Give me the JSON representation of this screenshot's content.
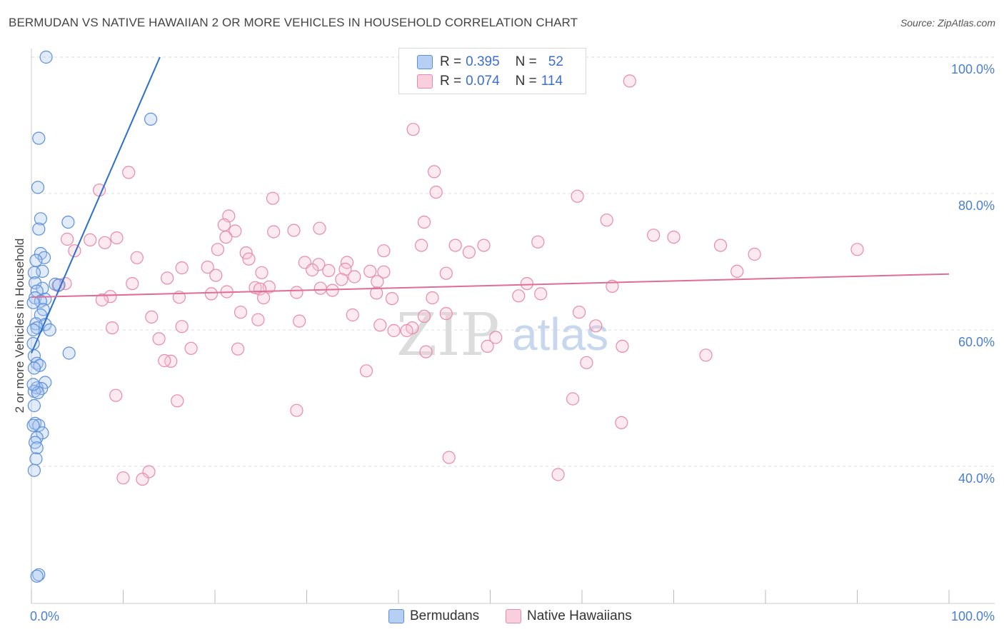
{
  "title": "BERMUDAN VS NATIVE HAWAIIAN 2 OR MORE VEHICLES IN HOUSEHOLD CORRELATION CHART",
  "source": "Source: ZipAtlas.com",
  "colors": {
    "blue": "#5b8fdc",
    "blue_fill": "#a8c7f0",
    "blue_line": "#2a6fd0",
    "pink": "#e88aa8",
    "pink_fill": "#f6c3d3",
    "pink_line": "#e06c98",
    "tick": "#4a7fd0"
  },
  "legend": {
    "rows": [
      {
        "r_label": "R =",
        "r_value": "0.395",
        "n_label": "N =",
        "n_value": "52"
      },
      {
        "r_label": "R =",
        "r_value": "0.074",
        "n_label": "N =",
        "n_value": "114"
      }
    ]
  },
  "bottom_legend": {
    "series1": "Bermudans",
    "series2": "Native Hawaiians"
  },
  "watermark": {
    "zip": "ZIP",
    "atlas": "atlas"
  },
  "chart_data": {
    "type": "scatter",
    "title": "BERMUDAN VS NATIVE HAWAIIAN 2 OR MORE VEHICLES IN HOUSEHOLD CORRELATION CHART",
    "xlabel": "",
    "ylabel": "2 or more Vehicles in Household",
    "xlim": [
      0,
      100
    ],
    "ylim": [
      20,
      102
    ],
    "x_tick_labels": [
      "0.0%",
      "100.0%"
    ],
    "y_ticks": [
      40,
      60,
      80,
      100
    ],
    "y_tick_labels": [
      "40.0%",
      "60.0%",
      "80.0%",
      "100.0%"
    ],
    "grid": true,
    "legend_position": "top-center",
    "series": [
      {
        "name": "Bermudans",
        "R": 0.395,
        "N": 52,
        "trend": {
          "x": [
            0.0,
            14.0
          ],
          "y": [
            56.6,
            100.0
          ]
        },
        "points": [
          [
            1.6,
            100.0
          ],
          [
            13.0,
            90.9
          ],
          [
            0.8,
            88.1
          ],
          [
            0.7,
            80.9
          ],
          [
            1.0,
            76.3
          ],
          [
            4.0,
            75.8
          ],
          [
            0.8,
            74.8
          ],
          [
            1.0,
            71.2
          ],
          [
            1.4,
            70.6
          ],
          [
            0.5,
            70.2
          ],
          [
            1.2,
            68.6
          ],
          [
            0.3,
            68.4
          ],
          [
            0.4,
            66.9
          ],
          [
            2.6,
            66.7
          ],
          [
            3.0,
            66.6
          ],
          [
            1.2,
            66.1
          ],
          [
            0.6,
            65.7
          ],
          [
            0.4,
            64.7
          ],
          [
            1.5,
            64.5
          ],
          [
            1.0,
            64.2
          ],
          [
            1.3,
            63.0
          ],
          [
            1.0,
            62.2
          ],
          [
            0.5,
            60.9
          ],
          [
            1.5,
            60.8
          ],
          [
            0.6,
            60.3
          ],
          [
            2.0,
            60.0
          ],
          [
            4.1,
            56.6
          ],
          [
            0.3,
            56.2
          ],
          [
            0.6,
            55.1
          ],
          [
            0.9,
            54.8
          ],
          [
            0.3,
            54.4
          ],
          [
            1.5,
            52.3
          ],
          [
            0.6,
            51.5
          ],
          [
            1.1,
            51.4
          ],
          [
            0.3,
            51.0
          ],
          [
            0.7,
            50.8
          ],
          [
            0.3,
            48.9
          ],
          [
            0.4,
            46.3
          ],
          [
            0.8,
            46.0
          ],
          [
            1.2,
            44.9
          ],
          [
            0.6,
            44.2
          ],
          [
            0.4,
            43.5
          ],
          [
            0.6,
            42.7
          ],
          [
            0.5,
            41.1
          ],
          [
            0.3,
            39.4
          ],
          [
            0.8,
            24.1
          ],
          [
            0.6,
            23.9
          ],
          [
            0.2,
            60.0
          ],
          [
            0.2,
            64.0
          ],
          [
            0.2,
            58.0
          ],
          [
            0.2,
            52.0
          ],
          [
            0.2,
            46.0
          ]
        ]
      },
      {
        "name": "Native Hawaiians",
        "R": 0.074,
        "N": 114,
        "trend": {
          "x": [
            0.0,
            100.0
          ],
          "y": [
            64.8,
            68.2
          ]
        },
        "points": [
          [
            65.2,
            96.5
          ],
          [
            41.6,
            89.4
          ],
          [
            43.9,
            83.2
          ],
          [
            10.6,
            83.1
          ],
          [
            7.4,
            80.5
          ],
          [
            44.1,
            80.2
          ],
          [
            59.5,
            79.6
          ],
          [
            26.3,
            79.3
          ],
          [
            21.5,
            76.7
          ],
          [
            62.7,
            76.1
          ],
          [
            42.8,
            75.8
          ],
          [
            21.0,
            75.4
          ],
          [
            31.4,
            74.9
          ],
          [
            28.6,
            74.6
          ],
          [
            22.2,
            74.5
          ],
          [
            26.4,
            74.4
          ],
          [
            67.8,
            73.9
          ],
          [
            70.0,
            73.6
          ],
          [
            21.2,
            73.6
          ],
          [
            9.3,
            73.5
          ],
          [
            3.9,
            73.3
          ],
          [
            6.4,
            73.2
          ],
          [
            8.0,
            72.8
          ],
          [
            55.2,
            72.9
          ],
          [
            42.5,
            72.4
          ],
          [
            49.3,
            72.4
          ],
          [
            46.2,
            72.4
          ],
          [
            75.1,
            72.4
          ],
          [
            90.0,
            71.8
          ],
          [
            20.3,
            71.8
          ],
          [
            38.4,
            71.6
          ],
          [
            4.7,
            71.6
          ],
          [
            23.4,
            71.3
          ],
          [
            47.7,
            71.4
          ],
          [
            78.8,
            71.1
          ],
          [
            11.5,
            70.6
          ],
          [
            23.7,
            70.4
          ],
          [
            29.8,
            69.9
          ],
          [
            34.4,
            69.9
          ],
          [
            31.3,
            69.6
          ],
          [
            16.4,
            69.1
          ],
          [
            19.2,
            69.2
          ],
          [
            34.2,
            68.9
          ],
          [
            30.6,
            68.8
          ],
          [
            32.4,
            68.7
          ],
          [
            36.9,
            68.6
          ],
          [
            38.4,
            68.5
          ],
          [
            25.1,
            68.4
          ],
          [
            45.2,
            68.3
          ],
          [
            76.9,
            68.6
          ],
          [
            20.1,
            68.0
          ],
          [
            35.2,
            67.8
          ],
          [
            14.8,
            67.6
          ],
          [
            33.8,
            67.4
          ],
          [
            37.7,
            67.1
          ],
          [
            54.0,
            66.8
          ],
          [
            11.0,
            66.8
          ],
          [
            3.7,
            66.8
          ],
          [
            2.9,
            66.5
          ],
          [
            63.3,
            66.4
          ],
          [
            25.9,
            66.3
          ],
          [
            24.4,
            66.2
          ],
          [
            24.9,
            66.0
          ],
          [
            31.5,
            66.1
          ],
          [
            32.8,
            65.8
          ],
          [
            37.6,
            65.4
          ],
          [
            21.3,
            65.6
          ],
          [
            28.9,
            65.5
          ],
          [
            55.5,
            65.3
          ],
          [
            19.6,
            65.3
          ],
          [
            8.6,
            64.9
          ],
          [
            53.1,
            65.0
          ],
          [
            16.1,
            64.8
          ],
          [
            25.3,
            64.7
          ],
          [
            39.3,
            64.6
          ],
          [
            43.7,
            64.7
          ],
          [
            7.7,
            64.4
          ],
          [
            45.2,
            62.4
          ],
          [
            59.7,
            62.6
          ],
          [
            22.8,
            62.6
          ],
          [
            35.0,
            62.2
          ],
          [
            42.8,
            62.0
          ],
          [
            13.1,
            61.9
          ],
          [
            24.7,
            61.5
          ],
          [
            29.2,
            61.3
          ],
          [
            38.0,
            60.7
          ],
          [
            41.5,
            60.3
          ],
          [
            16.4,
            60.5
          ],
          [
            61.5,
            60.6
          ],
          [
            8.8,
            60.3
          ],
          [
            40.9,
            59.9
          ],
          [
            39.5,
            59.9
          ],
          [
            50.6,
            58.9
          ],
          [
            13.9,
            58.7
          ],
          [
            49.7,
            57.6
          ],
          [
            17.4,
            57.3
          ],
          [
            64.4,
            57.6
          ],
          [
            22.5,
            57.2
          ],
          [
            43.0,
            56.8
          ],
          [
            73.5,
            56.3
          ],
          [
            15.2,
            55.4
          ],
          [
            60.5,
            55.2
          ],
          [
            14.5,
            55.5
          ],
          [
            36.5,
            54.0
          ],
          [
            9.2,
            50.4
          ],
          [
            15.9,
            49.6
          ],
          [
            59.0,
            49.9
          ],
          [
            28.9,
            48.2
          ],
          [
            64.3,
            46.4
          ],
          [
            45.5,
            41.3
          ],
          [
            12.8,
            39.2
          ],
          [
            12.1,
            38.1
          ],
          [
            10.0,
            38.3
          ],
          [
            57.4,
            38.8
          ]
        ]
      }
    ]
  }
}
